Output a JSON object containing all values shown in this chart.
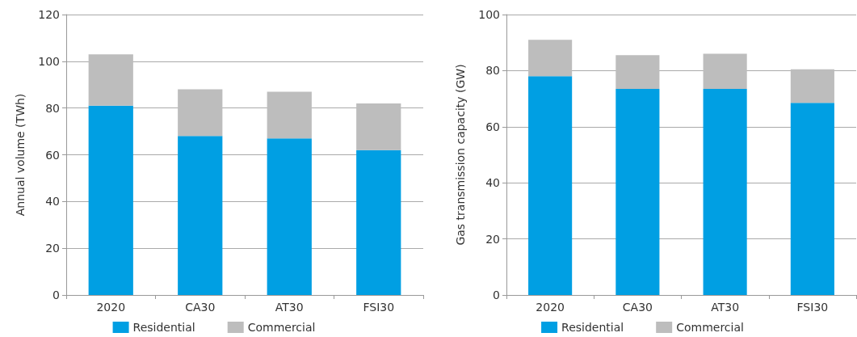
{
  "chart_data": [
    {
      "type": "bar",
      "stacked": true,
      "ylabel": "Annual volume (TWh)",
      "categories": [
        "2020",
        "CA30",
        "AT30",
        "FSI30"
      ],
      "series": [
        {
          "name": "Residential",
          "color": "#009fe3",
          "values": [
            81,
            68,
            67,
            62
          ]
        },
        {
          "name": "Commercial",
          "color": "#bdbdbd",
          "values": [
            22,
            20,
            20,
            20
          ]
        }
      ],
      "ylim": [
        0,
        120
      ],
      "yticks": [
        0,
        20,
        40,
        60,
        80,
        100,
        120
      ],
      "grid": "y",
      "legend": "bottom"
    },
    {
      "type": "bar",
      "stacked": true,
      "ylabel": "Gas transmission capacity (GW)",
      "categories": [
        "2020",
        "CA30",
        "AT30",
        "FSI30"
      ],
      "series": [
        {
          "name": "Residential",
          "color": "#009fe3",
          "values": [
            78,
            73.5,
            73.5,
            68.5
          ]
        },
        {
          "name": "Commercial",
          "color": "#bdbdbd",
          "values": [
            13,
            12,
            12.5,
            12
          ]
        }
      ],
      "ylim": [
        0,
        100
      ],
      "yticks": [
        0,
        20,
        40,
        60,
        80,
        100
      ],
      "grid": "y",
      "legend": "bottom"
    }
  ]
}
